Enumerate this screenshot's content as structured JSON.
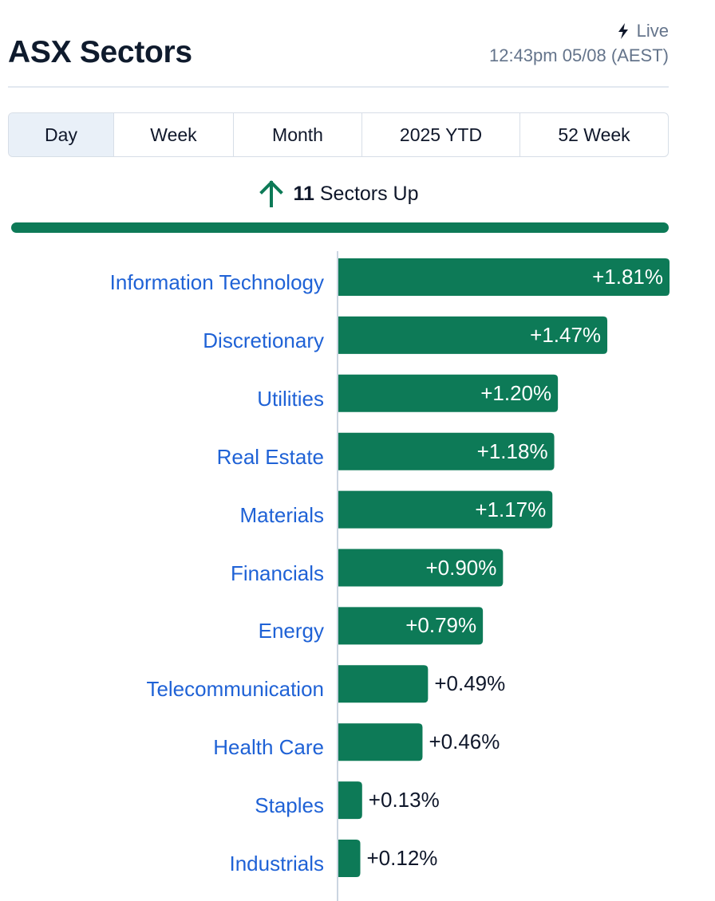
{
  "header": {
    "title": "ASX Sectors",
    "live_label": "Live",
    "timestamp": "12:43pm 05/08 (AEST)"
  },
  "tabs": [
    {
      "label": "Day",
      "active": true
    },
    {
      "label": "Week",
      "active": false
    },
    {
      "label": "Month",
      "active": false
    },
    {
      "label": "2025 YTD",
      "active": false
    },
    {
      "label": "52 Week",
      "active": false
    }
  ],
  "summary": {
    "count": "11",
    "text": "Sectors Up",
    "icon": "arrow-up-icon"
  },
  "colors": {
    "bar": "#0d7a57",
    "label": "#1f62d6",
    "axis": "#cbd5e1"
  },
  "chart_data": {
    "type": "bar",
    "orientation": "horizontal",
    "categories": [
      "Information Technology",
      "Discretionary",
      "Utilities",
      "Real Estate",
      "Materials",
      "Financials",
      "Energy",
      "Telecommunication",
      "Health Care",
      "Staples",
      "Industrials"
    ],
    "values": [
      1.81,
      1.47,
      1.2,
      1.18,
      1.17,
      0.9,
      0.79,
      0.49,
      0.46,
      0.13,
      0.12
    ],
    "value_labels": [
      "+1.81%",
      "+1.47%",
      "+1.20%",
      "+1.18%",
      "+1.17%",
      "+0.90%",
      "+0.79%",
      "+0.49%",
      "+0.46%",
      "+0.13%",
      "+0.12%"
    ],
    "unit": "%",
    "xlim": [
      0,
      1.81
    ]
  }
}
